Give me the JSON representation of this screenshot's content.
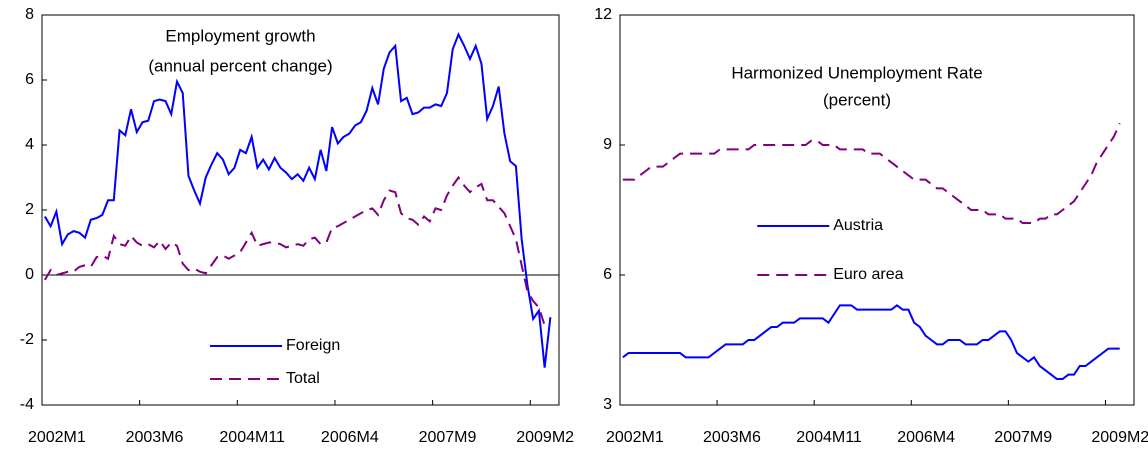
{
  "chart_data": [
    {
      "type": "line",
      "title": "Employment growth",
      "subtitle": "(annual percent change)",
      "categories": [
        "2002M1",
        null,
        null,
        null,
        null,
        null,
        null,
        null,
        null,
        null,
        null,
        null,
        null,
        null,
        null,
        null,
        null,
        "2003M6",
        null,
        null,
        null,
        null,
        null,
        null,
        null,
        null,
        null,
        null,
        null,
        null,
        null,
        null,
        null,
        null,
        "2004M11",
        null,
        null,
        null,
        null,
        null,
        null,
        null,
        null,
        null,
        null,
        null,
        null,
        null,
        null,
        null,
        null,
        "2006M4",
        null,
        null,
        null,
        null,
        null,
        null,
        null,
        null,
        null,
        null,
        null,
        null,
        null,
        null,
        null,
        null,
        "2007M9",
        null,
        null,
        null,
        null,
        null,
        null,
        null,
        null,
        null,
        null,
        null,
        null,
        null,
        null,
        null,
        null,
        "2009M2",
        null,
        null,
        null,
        null
      ],
      "series": [
        {
          "name": "Foreign",
          "color": "#0000ff",
          "dashed": false,
          "values": [
            1.8,
            1.5,
            1.95,
            0.95,
            1.25,
            1.35,
            1.3,
            1.15,
            1.7,
            1.75,
            1.85,
            2.3,
            2.3,
            4.45,
            4.3,
            5.1,
            4.4,
            4.7,
            4.75,
            5.35,
            5.4,
            5.35,
            4.95,
            5.95,
            5.6,
            3.05,
            2.6,
            2.2,
            3.0,
            3.4,
            3.75,
            3.55,
            3.1,
            3.3,
            3.85,
            3.75,
            4.25,
            3.3,
            3.55,
            3.25,
            3.6,
            3.3,
            3.15,
            2.95,
            3.1,
            2.9,
            3.3,
            2.95,
            3.85,
            3.2,
            4.55,
            4.05,
            4.25,
            4.35,
            4.6,
            4.7,
            5.05,
            5.75,
            5.25,
            6.35,
            6.85,
            7.05,
            5.35,
            5.45,
            4.95,
            5.0,
            5.15,
            5.15,
            5.25,
            5.2,
            5.6,
            6.95,
            7.4,
            7.05,
            6.65,
            7.05,
            6.5,
            4.8,
            5.2,
            5.8,
            4.35,
            3.5,
            3.35,
            1.1,
            -0.3,
            -1.35,
            -1.1,
            -2.85,
            -1.3,
            null
          ]
        },
        {
          "name": "Total",
          "color": "#800080",
          "dashed": true,
          "values": [
            -0.15,
            0.15,
            0.0,
            0.05,
            0.1,
            0.1,
            0.25,
            0.3,
            0.25,
            0.55,
            0.6,
            0.5,
            1.2,
            0.95,
            0.9,
            1.2,
            1.0,
            0.9,
            0.95,
            0.85,
            1.05,
            0.8,
            1.0,
            0.9,
            0.35,
            0.15,
            0.2,
            0.1,
            0.05,
            0.3,
            0.55,
            0.6,
            0.5,
            0.6,
            0.7,
            1.0,
            1.3,
            0.9,
            0.95,
            1.0,
            1.0,
            0.95,
            0.85,
            0.9,
            0.95,
            0.9,
            1.1,
            1.15,
            0.95,
            1.0,
            1.45,
            1.5,
            1.6,
            1.7,
            1.8,
            1.9,
            2.0,
            2.05,
            1.85,
            2.3,
            2.6,
            2.55,
            1.9,
            1.75,
            1.7,
            1.55,
            1.8,
            1.65,
            2.05,
            2.0,
            2.45,
            2.75,
            3.0,
            2.75,
            2.55,
            2.7,
            2.8,
            2.3,
            2.3,
            2.1,
            1.9,
            1.5,
            1.1,
            0.3,
            -0.5,
            -0.8,
            -1.0,
            -1.55,
            null,
            null
          ]
        }
      ],
      "ylim": [
        -4,
        8
      ],
      "yticks": [
        -4,
        -2,
        0,
        2,
        4,
        6,
        8
      ],
      "zero_line": true,
      "legend": "lower center"
    },
    {
      "type": "line",
      "title": "Harmonized Unemployment Rate",
      "subtitle": "(percent)",
      "categories": [
        "2002M1",
        null,
        null,
        null,
        null,
        null,
        null,
        null,
        null,
        null,
        null,
        null,
        null,
        null,
        null,
        null,
        null,
        "2003M6",
        null,
        null,
        null,
        null,
        null,
        null,
        null,
        null,
        null,
        null,
        null,
        null,
        null,
        null,
        null,
        null,
        "2004M11",
        null,
        null,
        null,
        null,
        null,
        null,
        null,
        null,
        null,
        null,
        null,
        null,
        null,
        null,
        null,
        null,
        "2006M4",
        null,
        null,
        null,
        null,
        null,
        null,
        null,
        null,
        null,
        null,
        null,
        null,
        null,
        null,
        null,
        null,
        "2007M9",
        null,
        null,
        null,
        null,
        null,
        null,
        null,
        null,
        null,
        null,
        null,
        null,
        null,
        null,
        null,
        null,
        "2009M2",
        null,
        null,
        null,
        null
      ],
      "series": [
        {
          "name": "Austria",
          "color": "#0000ff",
          "dashed": false,
          "values": [
            4.1,
            4.2,
            4.2,
            4.2,
            4.2,
            4.2,
            4.2,
            4.2,
            4.2,
            4.2,
            4.2,
            4.1,
            4.1,
            4.1,
            4.1,
            4.1,
            4.2,
            4.3,
            4.4,
            4.4,
            4.4,
            4.4,
            4.5,
            4.5,
            4.6,
            4.7,
            4.8,
            4.8,
            4.9,
            4.9,
            4.9,
            5.0,
            5.0,
            5.0,
            5.0,
            5.0,
            4.9,
            5.1,
            5.3,
            5.3,
            5.3,
            5.2,
            5.2,
            5.2,
            5.2,
            5.2,
            5.2,
            5.2,
            5.3,
            5.2,
            5.2,
            4.9,
            4.8,
            4.6,
            4.5,
            4.4,
            4.4,
            4.5,
            4.5,
            4.5,
            4.4,
            4.4,
            4.4,
            4.5,
            4.5,
            4.6,
            4.7,
            4.7,
            4.5,
            4.2,
            4.1,
            4.0,
            4.1,
            3.9,
            3.8,
            3.7,
            3.6,
            3.6,
            3.7,
            3.7,
            3.9,
            3.9,
            4.0,
            4.1,
            4.2,
            4.3,
            4.3,
            4.3,
            null,
            null
          ]
        },
        {
          "name": "Euro area",
          "color": "#800080",
          "dashed": true,
          "values": [
            8.2,
            8.2,
            8.2,
            8.3,
            8.4,
            8.5,
            8.5,
            8.5,
            8.6,
            8.7,
            8.8,
            8.8,
            8.8,
            8.8,
            8.8,
            8.8,
            8.8,
            8.9,
            8.9,
            8.9,
            8.9,
            8.9,
            8.9,
            9.0,
            9.0,
            9.0,
            9.0,
            9.0,
            9.0,
            9.0,
            9.0,
            9.0,
            9.0,
            9.1,
            9.1,
            9.0,
            9.0,
            9.0,
            8.9,
            8.9,
            8.9,
            8.9,
            8.9,
            8.8,
            8.8,
            8.8,
            8.7,
            8.6,
            8.5,
            8.4,
            8.3,
            8.2,
            8.2,
            8.2,
            8.1,
            8.0,
            8.0,
            7.9,
            7.8,
            7.7,
            7.6,
            7.5,
            7.5,
            7.5,
            7.4,
            7.4,
            7.4,
            7.3,
            7.3,
            7.3,
            7.2,
            7.2,
            7.2,
            7.3,
            7.3,
            7.4,
            7.4,
            7.5,
            7.6,
            7.7,
            7.9,
            8.1,
            8.3,
            8.6,
            8.8,
            9.0,
            9.2,
            9.5,
            null,
            null
          ]
        }
      ],
      "ylim": [
        3,
        12
      ],
      "yticks": [
        3,
        6,
        9,
        12
      ],
      "zero_line": false,
      "legend": "center"
    }
  ]
}
